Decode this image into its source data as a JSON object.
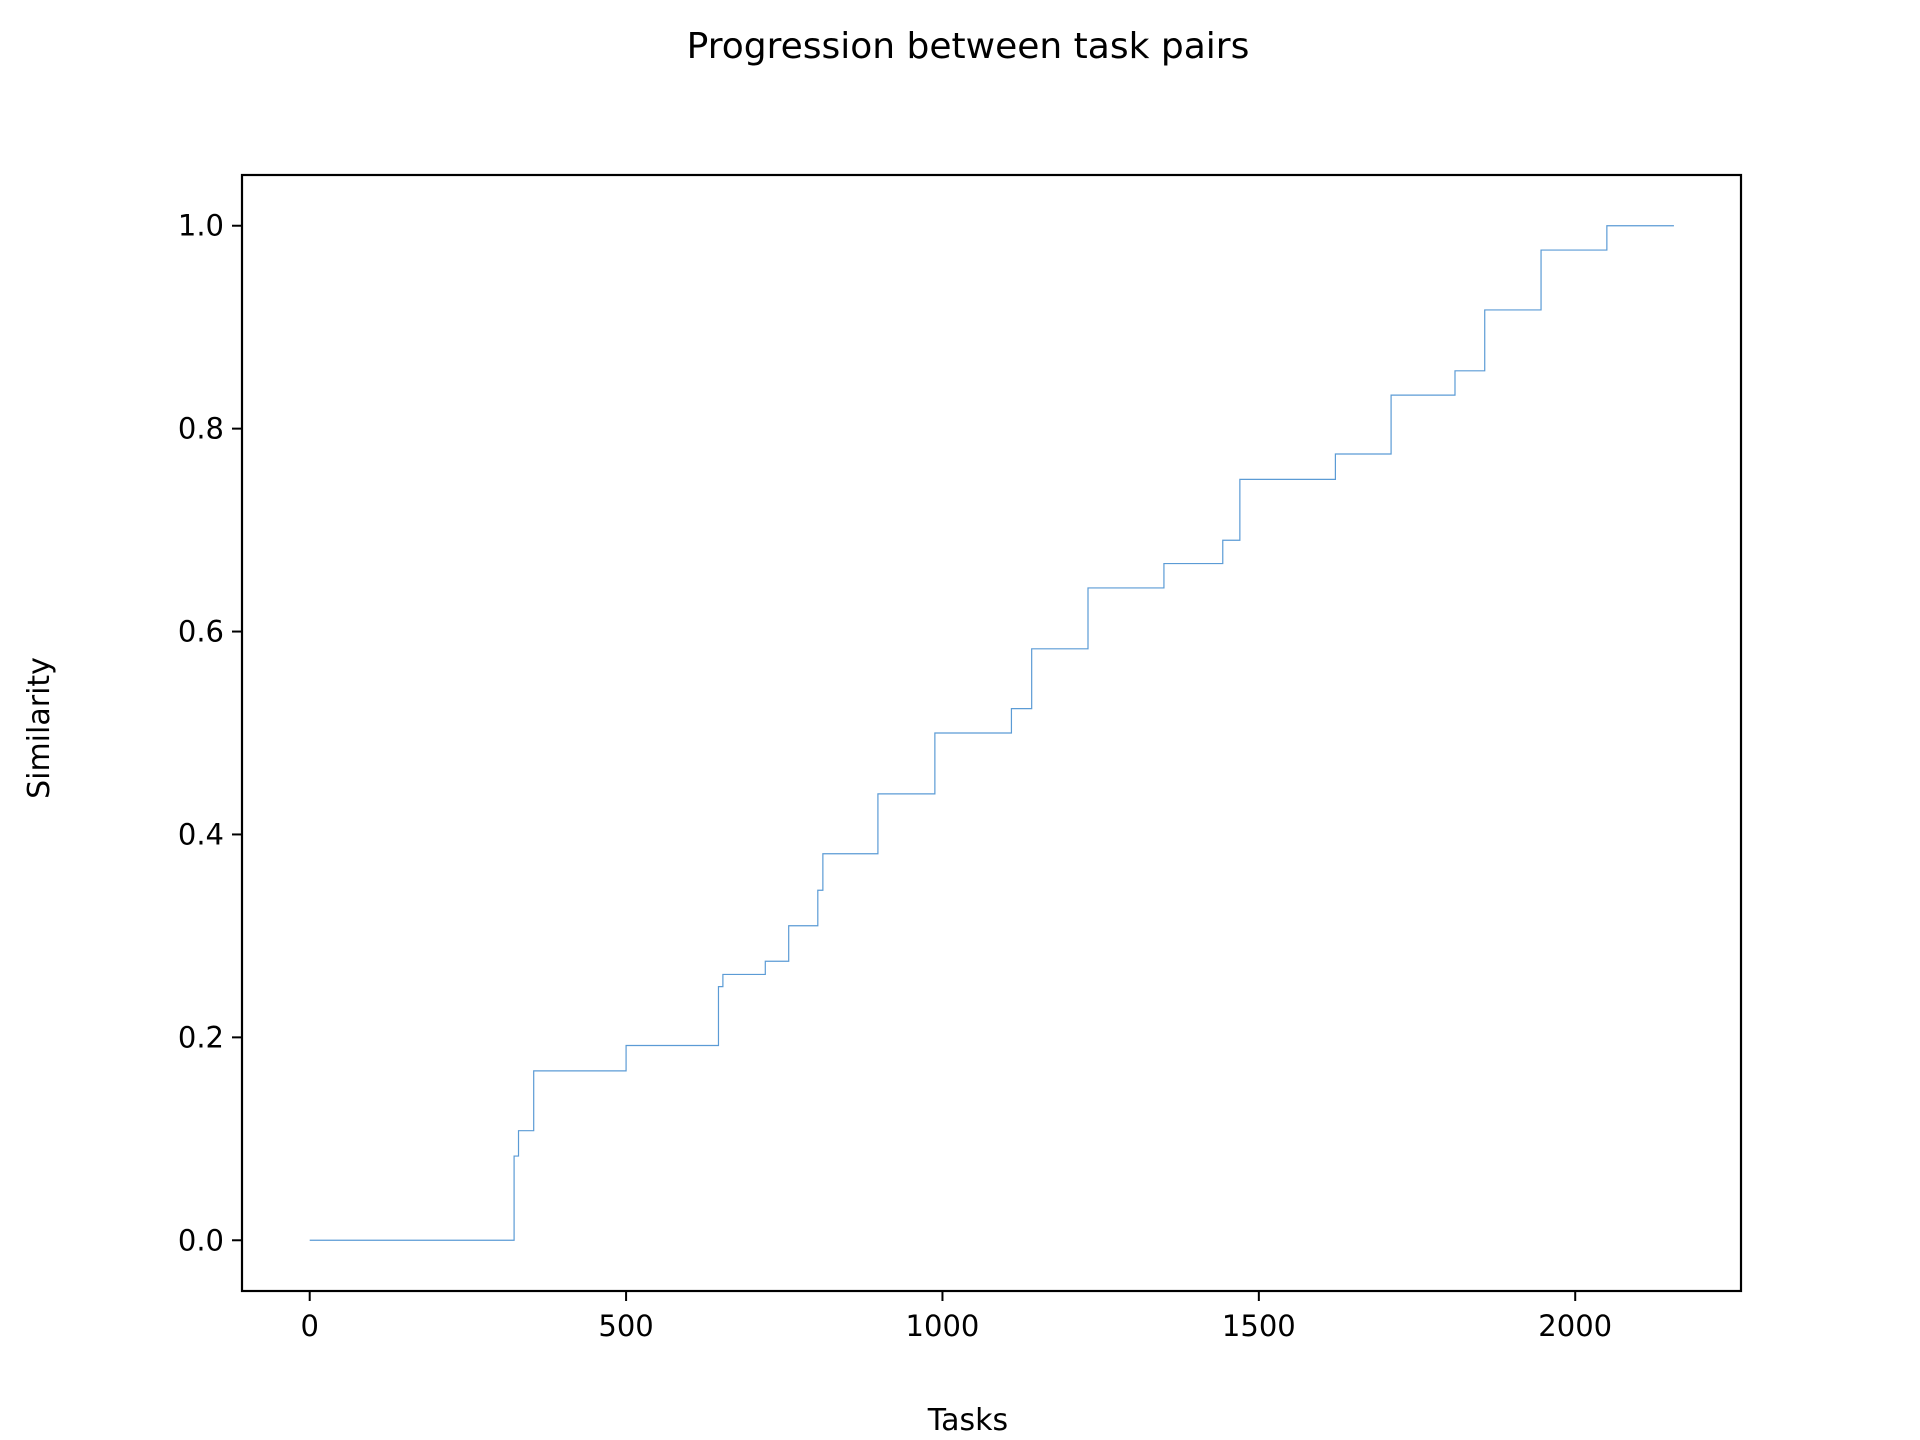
{
  "chart_data": {
    "type": "line",
    "style": "step",
    "title": "Progression between task pairs",
    "xlabel": "Tasks",
    "ylabel": "Similarity",
    "xlim": [
      -107,
      2262
    ],
    "ylim": [
      -0.05,
      1.05
    ],
    "xticks": [
      0,
      500,
      1000,
      1500,
      2000
    ],
    "xtick_labels": [
      "0",
      "500",
      "1000",
      "1500",
      "2000"
    ],
    "yticks": [
      0.0,
      0.2,
      0.4,
      0.6,
      0.8,
      1.0
    ],
    "ytick_labels": [
      "0.0",
      "0.2",
      "0.4",
      "0.6",
      "0.8",
      "1.0"
    ],
    "grid": false,
    "line_color": "#5b9bd5",
    "series": [
      {
        "x": [
          0,
          323,
          330,
          354,
          500,
          646,
          653,
          720,
          757,
          803,
          811,
          898,
          988,
          1109,
          1141,
          1230,
          1350,
          1443,
          1470,
          1621,
          1709,
          1810,
          1857,
          1946,
          2050,
          2156
        ],
        "y": [
          0.0,
          0.083,
          0.108,
          0.167,
          0.192,
          0.25,
          0.262,
          0.275,
          0.31,
          0.345,
          0.381,
          0.44,
          0.5,
          0.524,
          0.583,
          0.643,
          0.667,
          0.69,
          0.75,
          0.775,
          0.833,
          0.857,
          0.917,
          0.976,
          1.0,
          1.0
        ]
      }
    ]
  }
}
